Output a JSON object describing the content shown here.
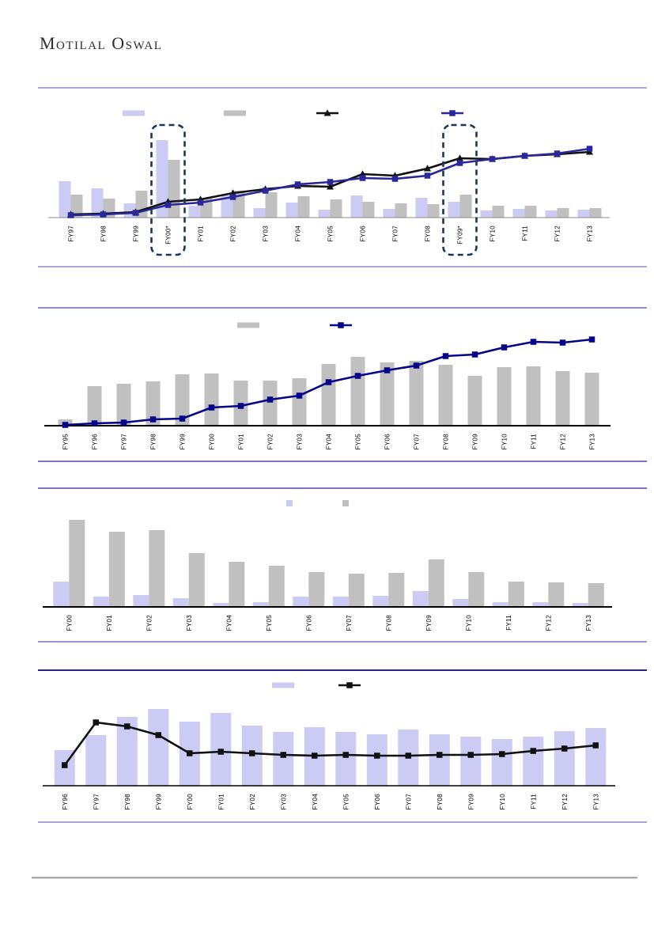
{
  "page": {
    "brand": "Motilal Oswal",
    "notes": "Report page with four charts. Charts show no titles, no axis numbers and no legend text (swatches only); series values are relative heights estimated from pixels."
  },
  "colors": {
    "lavender_bar": "#CBCBF4",
    "gray_bar": "#C0C0C0",
    "navy_line_chart1": "#28289B",
    "navy_line_chart2": "#05058C",
    "black_line": "#111111",
    "highlight_box": "#17365D"
  },
  "chart_data": [
    {
      "id": "c1",
      "type": "combo",
      "title": "",
      "categories": [
        "FY97",
        "FY98",
        "FY99",
        "FY00*",
        "FY01",
        "FY02",
        "FY03",
        "FY04",
        "FY05",
        "FY06",
        "FY07",
        "FY08",
        "FY09*",
        "FY10",
        "FY11",
        "FY12",
        "FY13"
      ],
      "series": [
        {
          "name": "lavender-bars",
          "kind": "bar",
          "color": "#CBCBF4",
          "values": [
            46,
            37,
            18,
            98,
            15,
            28,
            12,
            19,
            10,
            28,
            11,
            25,
            20,
            9,
            11,
            9,
            10
          ]
        },
        {
          "name": "gray-bars",
          "kind": "bar",
          "color": "#C0C0C0",
          "values": [
            29,
            24,
            34,
            73,
            25,
            34,
            32,
            27,
            23,
            20,
            18,
            17,
            29,
            15,
            15,
            12,
            12
          ]
        },
        {
          "name": "black-line",
          "kind": "line",
          "marker": "triangle",
          "color": "#111111",
          "values": [
            4,
            5,
            7,
            20,
            23,
            31,
            36,
            40,
            39,
            55,
            53,
            62,
            75,
            74,
            78,
            80,
            83
          ]
        },
        {
          "name": "navy-line",
          "kind": "line",
          "marker": "square",
          "color": "#28289B",
          "values": [
            3,
            4,
            6,
            16,
            19,
            26,
            34,
            42,
            45,
            50,
            49,
            53,
            69,
            74,
            78,
            81,
            87
          ]
        }
      ],
      "highlighted_categories": [
        "FY00*",
        "FY09*"
      ],
      "highlight_indexes": [
        3,
        12
      ],
      "legend": {
        "position": "top",
        "labels_visible": false,
        "items": [
          {
            "swatch": "bar",
            "color": "#CBCBF4"
          },
          {
            "swatch": "bar",
            "color": "#C0C0C0"
          },
          {
            "swatch": "line-triangle",
            "color": "#111111"
          },
          {
            "swatch": "line-square",
            "color": "#28289B"
          }
        ]
      },
      "xlabel": "",
      "ylabel": "",
      "ylim": [
        0,
        105
      ],
      "grid": false
    },
    {
      "id": "c2",
      "type": "combo",
      "title": "",
      "categories": [
        "FY95",
        "FY96",
        "FY97",
        "FY98",
        "FY99",
        "FY00",
        "FY01",
        "FY02",
        "FY03",
        "FY04",
        "FY05",
        "FY06",
        "FY07",
        "FY08",
        "FY09",
        "FY10",
        "FY11",
        "FY12",
        "FY13"
      ],
      "series": [
        {
          "name": "gray-bars",
          "kind": "bar",
          "color": "#C0C0C0",
          "values": [
            8,
            50,
            53,
            56,
            65,
            66,
            57,
            57,
            60,
            78,
            87,
            80,
            82,
            77,
            63,
            74,
            75,
            69,
            67
          ]
        },
        {
          "name": "navy-line",
          "kind": "line",
          "marker": "square",
          "color": "#05058C",
          "values": [
            1,
            3,
            4,
            8,
            9,
            23,
            25,
            33,
            38,
            55,
            63,
            70,
            76,
            88,
            90,
            99,
            106,
            105,
            109
          ]
        }
      ],
      "legend": {
        "position": "top",
        "labels_visible": false,
        "items": [
          {
            "swatch": "bar",
            "color": "#C0C0C0"
          },
          {
            "swatch": "line-square",
            "color": "#05058C"
          }
        ]
      },
      "xlabel": "",
      "ylabel": "",
      "ylim": [
        0,
        115
      ],
      "grid": false
    },
    {
      "id": "c3",
      "type": "bar",
      "title": "",
      "categories": [
        "FY00",
        "FY01",
        "FY02",
        "FY03",
        "FY04",
        "FY05",
        "FY06",
        "FY07",
        "FY08",
        "FY09",
        "FY10",
        "FY11",
        "FY12",
        "FY13"
      ],
      "series": [
        {
          "name": "lavender-bars",
          "kind": "bar",
          "color": "#CBCBF4",
          "values": [
            32,
            13,
            15,
            11,
            5,
            6,
            13,
            13,
            14,
            20,
            10,
            6,
            6,
            5
          ]
        },
        {
          "name": "gray-bars",
          "kind": "bar",
          "color": "#C0C0C0",
          "values": [
            110,
            95,
            97,
            68,
            57,
            52,
            44,
            42,
            43,
            60,
            44,
            32,
            31,
            30
          ]
        }
      ],
      "legend": {
        "position": "top",
        "labels_visible": false,
        "items": [
          {
            "swatch": "square",
            "color": "#CBCBF4"
          },
          {
            "swatch": "square",
            "color": "#C0C0C0"
          }
        ]
      },
      "xlabel": "",
      "ylabel": "",
      "ylim": [
        0,
        115
      ],
      "grid": false
    },
    {
      "id": "c4",
      "type": "combo",
      "title": "",
      "categories": [
        "FY96",
        "FY97",
        "FY98",
        "FY99",
        "FY00",
        "FY01",
        "FY02",
        "FY03",
        "FY04",
        "FY05",
        "FY06",
        "FY07",
        "FY08",
        "FY09",
        "FY10",
        "FY11",
        "FY12",
        "FY13"
      ],
      "series": [
        {
          "name": "lavender-bars",
          "kind": "bar",
          "color": "#CBCBF4",
          "values": [
            45,
            64,
            87,
            97,
            81,
            92,
            76,
            68,
            74,
            68,
            65,
            71,
            65,
            62,
            59,
            62,
            69,
            73
          ]
        },
        {
          "name": "black-line",
          "kind": "line",
          "marker": "square",
          "color": "#111111",
          "values": [
            26,
            80,
            75,
            64,
            41,
            43,
            41,
            39,
            38,
            39,
            38,
            38,
            39,
            39,
            40,
            44,
            47,
            51
          ]
        }
      ],
      "legend": {
        "position": "top",
        "labels_visible": false,
        "items": [
          {
            "swatch": "bar",
            "color": "#CBCBF4"
          },
          {
            "swatch": "line-square",
            "color": "#111111"
          }
        ]
      },
      "xlabel": "",
      "ylabel": "",
      "ylim": [
        0,
        105
      ],
      "grid": false
    }
  ]
}
